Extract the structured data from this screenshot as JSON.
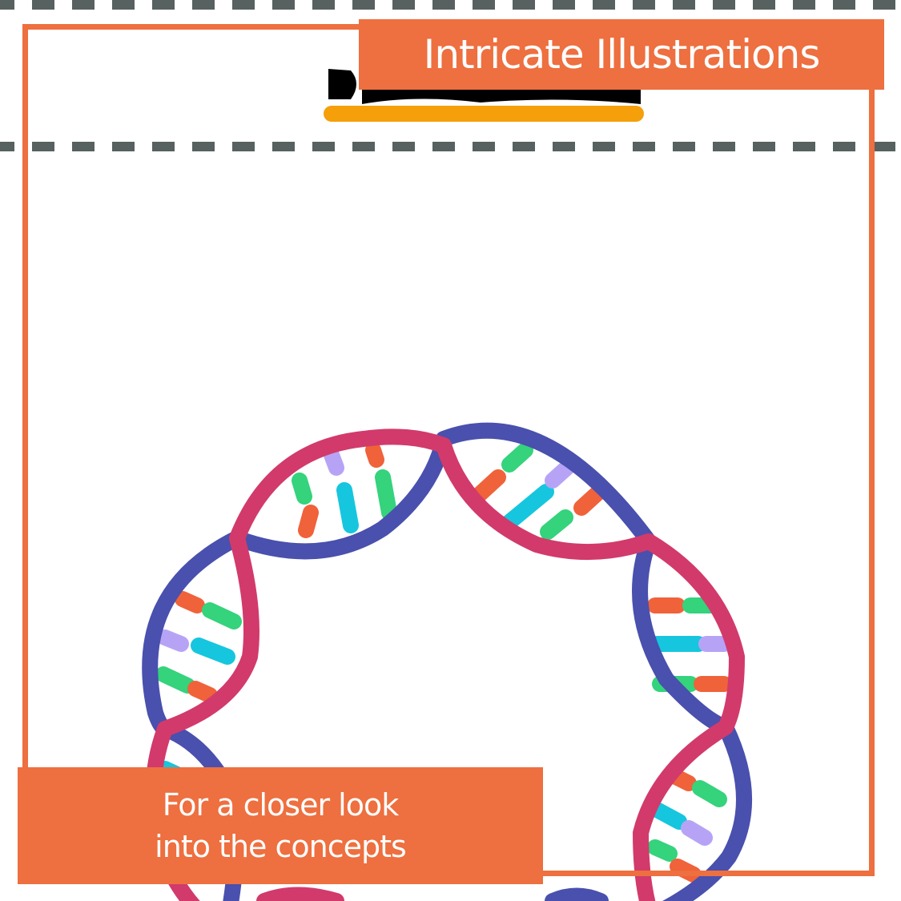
{
  "banner": {
    "title": "Intricate Illustrations"
  },
  "caption": {
    "line1": "For a closer look",
    "line2": "into the concepts"
  },
  "illustration": {
    "subject": "circular-dna-helix",
    "strand_colors": [
      "#4950ad",
      "#d23a6b"
    ],
    "base_pair_colors": [
      "#f0623a",
      "#34d37c",
      "#16c6de",
      "#b7a3f6"
    ]
  },
  "colors": {
    "accent": "#ee6f3f",
    "dash": "#566160",
    "underline": "#f59f0b",
    "text_on_accent": "#ffffff"
  }
}
